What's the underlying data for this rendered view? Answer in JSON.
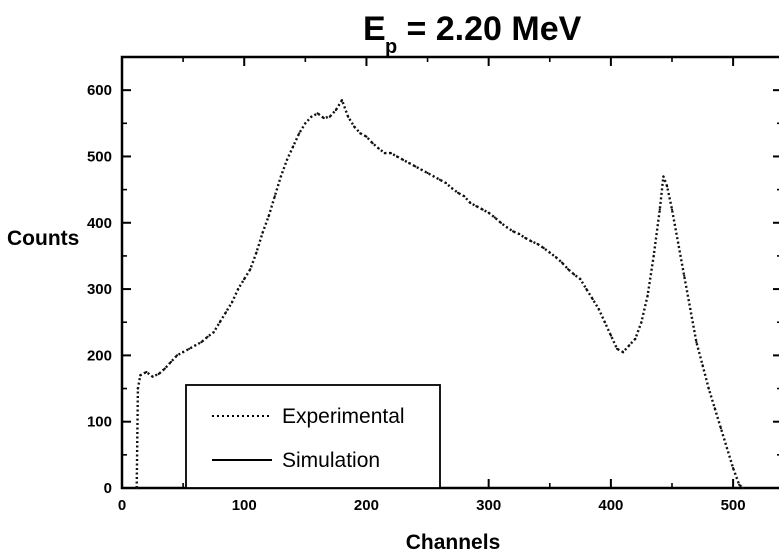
{
  "chart_data": {
    "type": "line",
    "title_main": "E",
    "title_sub": "p",
    "title_rest": " = 2.20 MeV",
    "xlabel": "Channels",
    "ylabel": "Counts",
    "xlim": [
      0,
      540
    ],
    "ylim": [
      0,
      650
    ],
    "x_ticks": [
      0,
      100,
      200,
      300,
      400,
      500
    ],
    "y_ticks": [
      0,
      100,
      200,
      300,
      400,
      500,
      600
    ],
    "legend": {
      "placement": "bottom-left"
    },
    "series": [
      {
        "name": "Experimental",
        "style": "dotted",
        "points": [
          [
            12,
            0
          ],
          [
            13,
            150
          ],
          [
            15,
            170
          ],
          [
            20,
            175
          ],
          [
            25,
            168
          ],
          [
            30,
            172
          ],
          [
            35,
            180
          ],
          [
            40,
            190
          ],
          [
            45,
            200
          ],
          [
            50,
            205
          ],
          [
            55,
            210
          ],
          [
            60,
            215
          ],
          [
            65,
            220
          ],
          [
            70,
            228
          ],
          [
            75,
            235
          ],
          [
            80,
            250
          ],
          [
            85,
            265
          ],
          [
            90,
            280
          ],
          [
            95,
            300
          ],
          [
            100,
            315
          ],
          [
            105,
            330
          ],
          [
            110,
            355
          ],
          [
            115,
            385
          ],
          [
            120,
            410
          ],
          [
            125,
            440
          ],
          [
            130,
            470
          ],
          [
            135,
            495
          ],
          [
            140,
            515
          ],
          [
            145,
            535
          ],
          [
            150,
            550
          ],
          [
            155,
            560
          ],
          [
            160,
            565
          ],
          [
            165,
            558
          ],
          [
            170,
            560
          ],
          [
            175,
            570
          ],
          [
            180,
            585
          ],
          [
            185,
            560
          ],
          [
            190,
            545
          ],
          [
            195,
            535
          ],
          [
            200,
            530
          ],
          [
            205,
            520
          ],
          [
            210,
            512
          ],
          [
            215,
            505
          ],
          [
            220,
            505
          ],
          [
            225,
            500
          ],
          [
            230,
            495
          ],
          [
            235,
            490
          ],
          [
            240,
            485
          ],
          [
            245,
            480
          ],
          [
            250,
            475
          ],
          [
            255,
            470
          ],
          [
            260,
            465
          ],
          [
            265,
            460
          ],
          [
            270,
            452
          ],
          [
            275,
            445
          ],
          [
            280,
            440
          ],
          [
            285,
            430
          ],
          [
            290,
            425
          ],
          [
            295,
            420
          ],
          [
            300,
            415
          ],
          [
            305,
            408
          ],
          [
            310,
            400
          ],
          [
            315,
            393
          ],
          [
            320,
            387
          ],
          [
            325,
            383
          ],
          [
            330,
            377
          ],
          [
            335,
            372
          ],
          [
            340,
            368
          ],
          [
            345,
            362
          ],
          [
            350,
            355
          ],
          [
            355,
            348
          ],
          [
            360,
            340
          ],
          [
            365,
            330
          ],
          [
            370,
            322
          ],
          [
            375,
            315
          ],
          [
            380,
            300
          ],
          [
            385,
            285
          ],
          [
            390,
            270
          ],
          [
            395,
            250
          ],
          [
            400,
            230
          ],
          [
            405,
            210
          ],
          [
            410,
            205
          ],
          [
            415,
            215
          ],
          [
            420,
            225
          ],
          [
            425,
            250
          ],
          [
            430,
            290
          ],
          [
            435,
            350
          ],
          [
            440,
            420
          ],
          [
            443,
            470
          ],
          [
            446,
            455
          ],
          [
            450,
            420
          ],
          [
            455,
            370
          ],
          [
            460,
            320
          ],
          [
            465,
            270
          ],
          [
            470,
            220
          ],
          [
            475,
            185
          ],
          [
            480,
            150
          ],
          [
            485,
            120
          ],
          [
            490,
            90
          ],
          [
            495,
            60
          ],
          [
            500,
            30
          ],
          [
            505,
            5
          ],
          [
            508,
            0
          ]
        ]
      },
      {
        "name": "Simulation",
        "style": "solid",
        "points": []
      }
    ]
  }
}
